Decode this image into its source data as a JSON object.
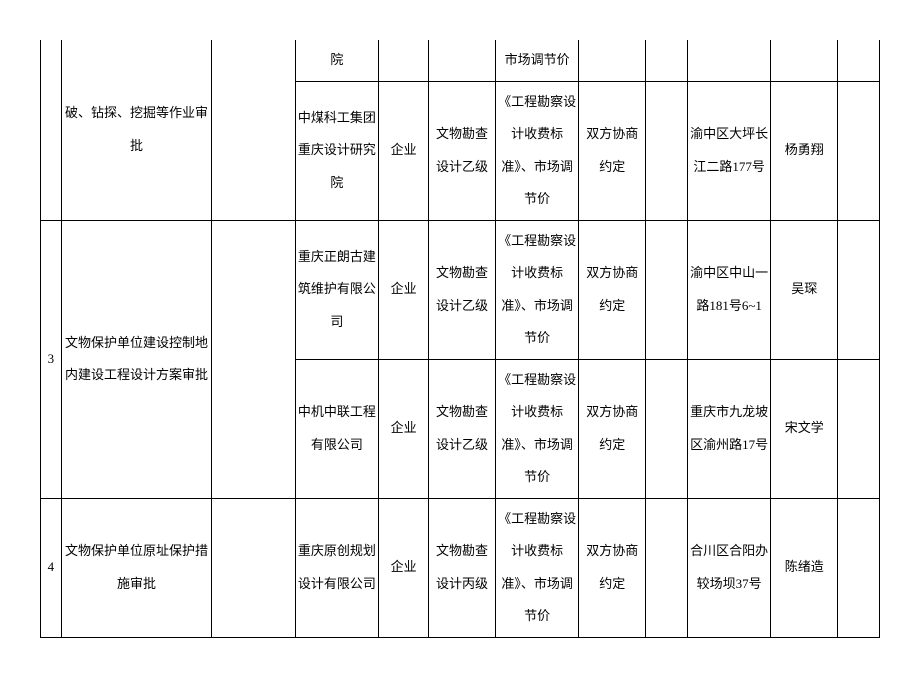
{
  "rows": [
    {
      "c0": "",
      "c1": "破、钻探、挖掘等作业审批",
      "c2": "",
      "c3": "院",
      "c4": "",
      "c5": "",
      "c6": "市场调节价",
      "c7": "",
      "c8": "",
      "c9": "",
      "c10": "",
      "c11": ""
    },
    {
      "c3": "中煤科工集团重庆设计研究院",
      "c4": "企业",
      "c5": "文物勘查设计乙级",
      "c6": "《工程勘察设计收费标准》、市场调节价",
      "c7": "双方协商约定",
      "c8": "",
      "c9": "渝中区大坪长江二路177号",
      "c10": "杨勇翔",
      "c11": ""
    },
    {
      "c0": "3",
      "c1": "文物保护单位建设控制地内建设工程设计方案审批",
      "c2": "",
      "c3": "重庆正朗古建筑维护有限公司",
      "c4": "企业",
      "c5": "文物勘查设计乙级",
      "c6": "《工程勘察设计收费标准》、市场调节价",
      "c7": "双方协商约定",
      "c8": "",
      "c9": "渝中区中山一路181号6~1",
      "c10": "吴琛",
      "c11": ""
    },
    {
      "c3": "中机中联工程有限公司",
      "c4": "企业",
      "c5": "文物勘查设计乙级",
      "c6": "《工程勘察设计收费标准》、市场调节价",
      "c7": "双方协商约定",
      "c8": "",
      "c9": "重庆市九龙坡区渝州路17号",
      "c10": "宋文学",
      "c11": ""
    },
    {
      "c0": "4",
      "c1": "文物保护单位原址保护措施审批",
      "c2": "",
      "c3": "重庆原创规划设计有限公司",
      "c4": "企业",
      "c5": "文物勘查设计丙级",
      "c6": "《工程勘察设计收费标准》、市场调节价",
      "c7": "双方协商约定",
      "c8": "",
      "c9": "合川区合阳办较场坝37号",
      "c10": "陈绪造",
      "c11": ""
    }
  ]
}
